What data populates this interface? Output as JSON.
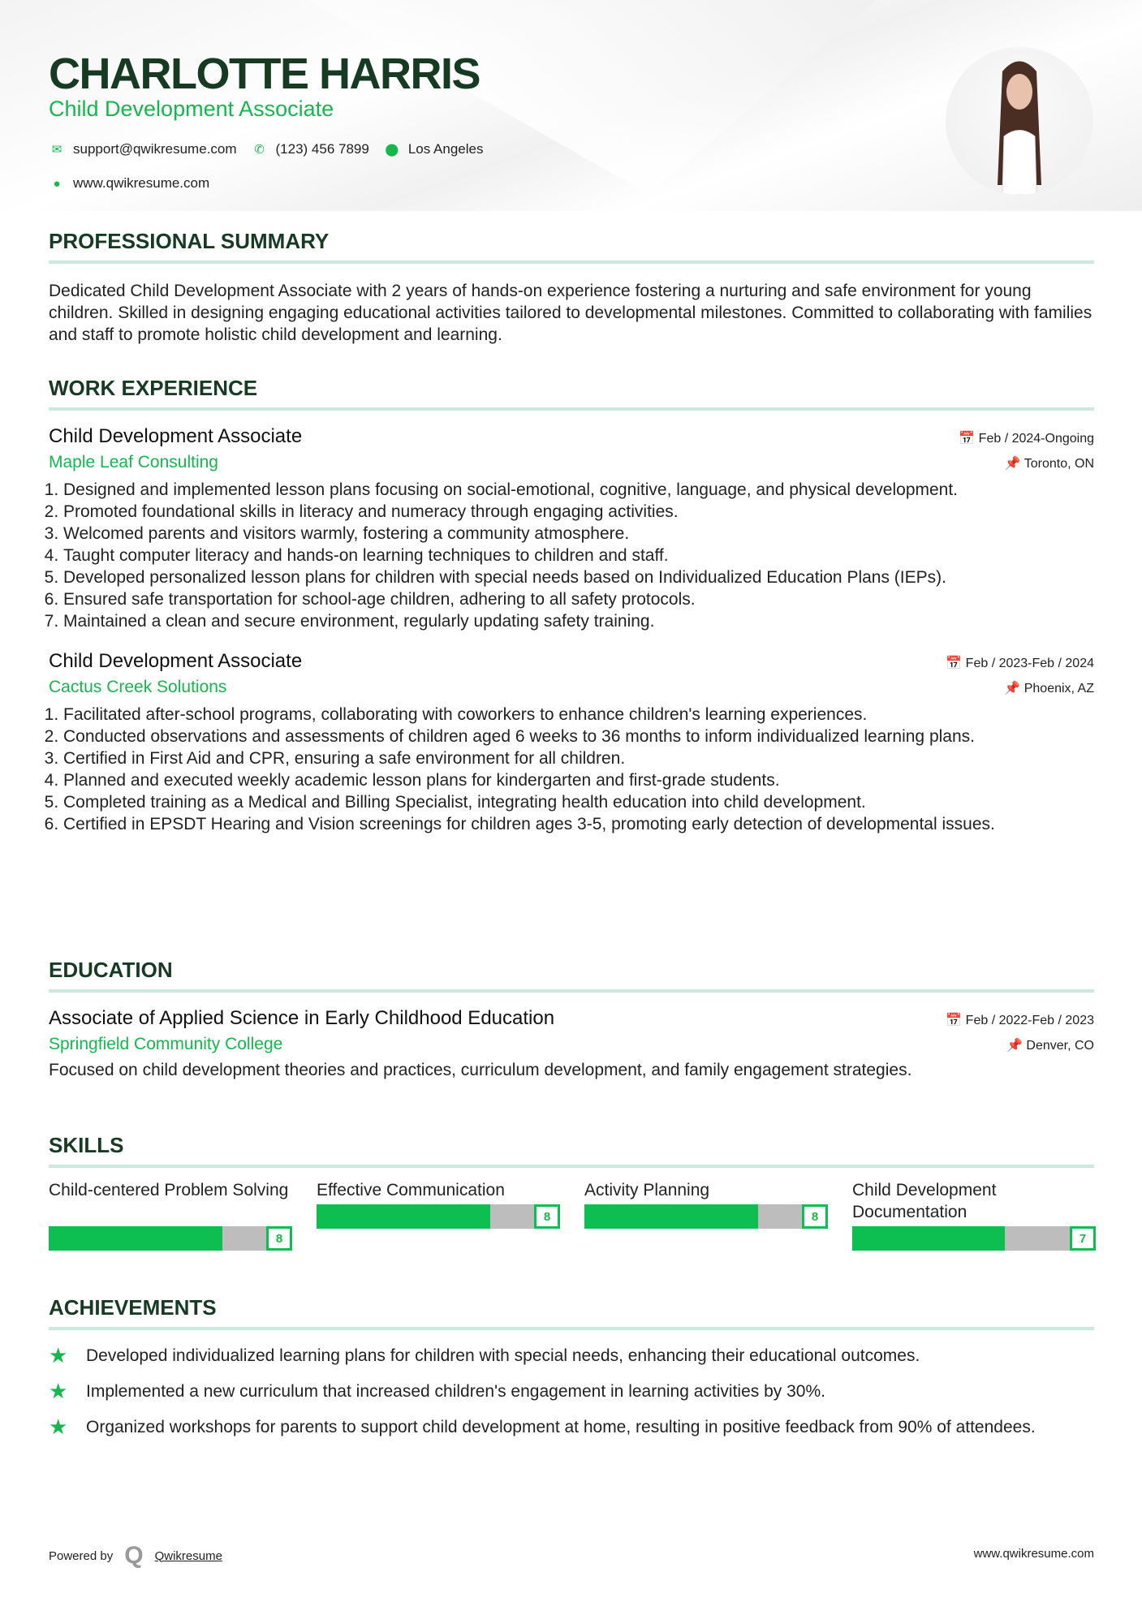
{
  "header": {
    "name": "CHARLOTTE HARRIS",
    "title": "Child Development Associate",
    "email": "support@qwikresume.com",
    "phone": "(123) 456 7899",
    "location": "Los Angeles",
    "website": "www.qwikresume.com"
  },
  "summary": {
    "heading": "PROFESSIONAL SUMMARY",
    "text": "Dedicated Child Development Associate with 2 years of hands-on experience fostering a nurturing and safe environment for young children. Skilled in designing engaging educational activities tailored to developmental milestones. Committed to collaborating with families and staff to promote holistic child development and learning."
  },
  "experience": {
    "heading": "WORK EXPERIENCE",
    "jobs": [
      {
        "title": "Child Development Associate",
        "company": "Maple Leaf Consulting",
        "dates": "Feb / 2024-Ongoing",
        "location": "Toronto, ON",
        "bullets": [
          "Designed and implemented lesson plans focusing on social-emotional, cognitive, language, and physical development.",
          "Promoted foundational skills in literacy and numeracy through engaging activities.",
          "Welcomed parents and visitors warmly, fostering a community atmosphere.",
          "Taught computer literacy and hands-on learning techniques to children and staff.",
          "Developed personalized lesson plans for children with special needs based on Individualized Education Plans (IEPs).",
          "Ensured safe transportation for school-age children, adhering to all safety protocols.",
          "Maintained a clean and secure environment, regularly updating safety training."
        ]
      },
      {
        "title": "Child Development Associate",
        "company": "Cactus Creek Solutions",
        "dates": "Feb / 2023-Feb / 2024",
        "location": "Phoenix, AZ",
        "bullets": [
          "Facilitated after-school programs, collaborating with coworkers to enhance children's learning experiences.",
          "Conducted observations and assessments of children aged 6 weeks to 36 months to inform individualized learning plans.",
          "Certified in First Aid and CPR, ensuring a safe environment for all children.",
          "Planned and executed weekly academic lesson plans for kindergarten and first-grade students.",
          "Completed training as a Medical and Billing Specialist, integrating health education into child development.",
          "Certified in EPSDT Hearing and Vision screenings for children ages 3-5, promoting early detection of developmental issues."
        ]
      }
    ]
  },
  "education": {
    "heading": "EDUCATION",
    "degree": "Associate of Applied Science in Early Childhood Education",
    "school": "Springfield Community College",
    "dates": "Feb / 2022-Feb / 2023",
    "location": "Denver, CO",
    "description": "Focused on child development theories and practices, curriculum development, and family engagement strategies."
  },
  "skills": {
    "heading": "SKILLS",
    "items": [
      {
        "name": "Child-centered Problem Solving",
        "level": 8
      },
      {
        "name": "Effective Communication",
        "level": 8
      },
      {
        "name": "Activity Planning",
        "level": 8
      },
      {
        "name": "Child Development Documentation",
        "level": 7
      }
    ]
  },
  "achievements": {
    "heading": "ACHIEVEMENTS",
    "items": [
      "Developed individualized learning plans for children with special needs, enhancing their educational outcomes.",
      "Implemented a new curriculum that increased children's engagement in learning activities by 30%.",
      "Organized workshops for parents to support child development at home, resulting in positive feedback from 90% of attendees."
    ]
  },
  "footer": {
    "powered_by": "Powered by",
    "brand": "Qwikresume",
    "website": "www.qwikresume.com"
  },
  "colors": {
    "accent": "#14b84d",
    "heading": "#173b22",
    "bar_fill": "#0cbf50",
    "bar_empty": "#bdbdbd"
  }
}
